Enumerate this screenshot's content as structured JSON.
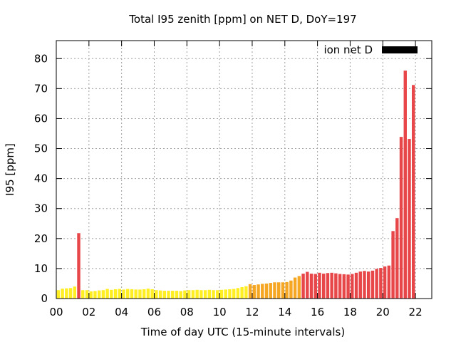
{
  "chart_data": {
    "type": "bar",
    "title": "Total I95 zenith [ppm] on NET D, DoY=197",
    "xlabel": "Time of day UTC (15-minute intervals)",
    "ylabel": "I95 [ppm]",
    "xlim": [
      0,
      23
    ],
    "ylim": [
      0,
      86
    ],
    "x_ticks": [
      "00",
      "02",
      "04",
      "06",
      "08",
      "10",
      "12",
      "14",
      "16",
      "18",
      "20",
      "22"
    ],
    "y_ticks": [
      "0",
      "10",
      "20",
      "30",
      "40",
      "50",
      "60",
      "70",
      "80"
    ],
    "grid": true,
    "legend": {
      "label": "ion net D",
      "placement": "top-right"
    },
    "colors": {
      "low": "#ffee22",
      "mid": "#f5a623",
      "high": "#e8474a",
      "legend_swatch": "#000000"
    },
    "series": [
      {
        "name": "ion net D",
        "values": [
          2.8,
          3.3,
          3.4,
          3.5,
          4.0,
          21.8,
          2.8,
          2.8,
          2.4,
          2.5,
          2.7,
          2.8,
          3.2,
          2.9,
          3.1,
          3.2,
          3.0,
          3.2,
          3.1,
          3.0,
          3.0,
          3.1,
          3.3,
          3.1,
          2.8,
          2.7,
          2.6,
          2.6,
          2.6,
          2.6,
          2.5,
          2.7,
          2.8,
          2.8,
          2.9,
          2.8,
          2.8,
          2.9,
          2.8,
          2.8,
          2.9,
          3.0,
          3.1,
          3.2,
          3.5,
          3.8,
          4.1,
          4.8,
          4.5,
          4.7,
          4.9,
          5.0,
          5.2,
          5.4,
          5.4,
          5.4,
          5.5,
          6.0,
          7.0,
          7.5,
          8.3,
          8.9,
          8.3,
          8.2,
          8.6,
          8.3,
          8.5,
          8.6,
          8.4,
          8.2,
          8.1,
          8.0,
          8.2,
          8.6,
          9.0,
          9.2,
          9.0,
          9.3,
          9.9,
          10.2,
          10.7,
          11.0,
          22.5,
          26.8,
          53.9,
          76.0,
          53.2,
          71.2
        ],
        "levels": [
          "low",
          "low",
          "low",
          "low",
          "low",
          "high",
          "low",
          "low",
          "low",
          "low",
          "low",
          "low",
          "low",
          "low",
          "low",
          "low",
          "low",
          "low",
          "low",
          "low",
          "low",
          "low",
          "low",
          "low",
          "low",
          "low",
          "low",
          "low",
          "low",
          "low",
          "low",
          "low",
          "low",
          "low",
          "low",
          "low",
          "low",
          "low",
          "low",
          "low",
          "low",
          "low",
          "low",
          "low",
          "low",
          "low",
          "low",
          "mid",
          "mid",
          "mid",
          "mid",
          "mid",
          "mid",
          "mid",
          "mid",
          "mid",
          "mid",
          "mid",
          "mid",
          "mid",
          "high",
          "high",
          "high",
          "high",
          "high",
          "high",
          "high",
          "high",
          "high",
          "high",
          "high",
          "high",
          "high",
          "high",
          "high",
          "high",
          "high",
          "high",
          "high",
          "high",
          "high",
          "high",
          "high",
          "high",
          "high",
          "high",
          "high",
          "high"
        ]
      }
    ]
  }
}
